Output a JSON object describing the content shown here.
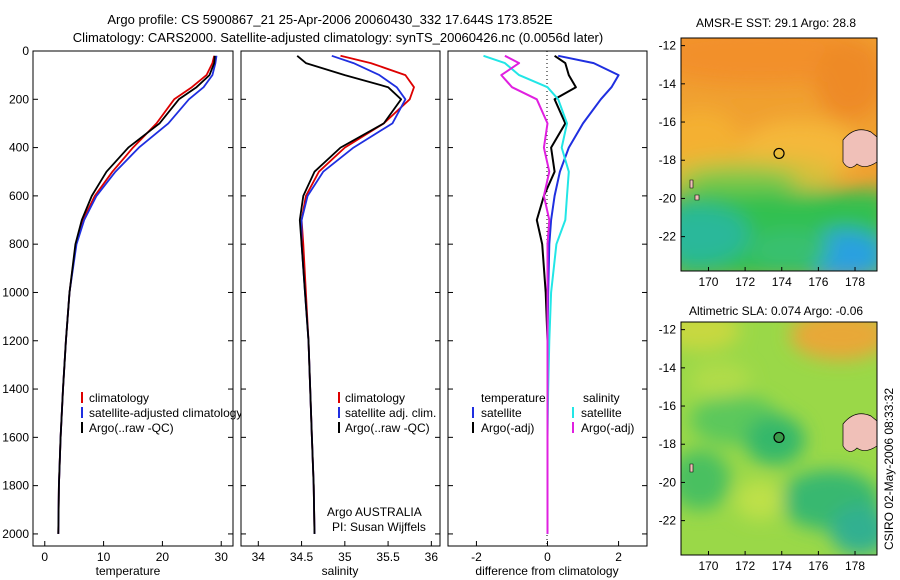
{
  "title": {
    "line1": "Argo profile: CS 5900867_21 25-Apr-2006 20060430_332 17.644S 173.852E",
    "line2": "Climatology: CARS2000. Satellite-adjusted climatology: synTS_20060426.nc (0.0056d later)"
  },
  "footer_credit": "CSIRO 02-May-2006 08:33:32",
  "colors": {
    "climatology": "#dd0000",
    "satellite": "#1f2fe0",
    "argo": "#000000",
    "satellite_salinity": "#22e6e6",
    "argo_salinity": "#e020e0"
  },
  "chart_data": [
    {
      "type": "line",
      "name": "temperature-panel",
      "xlabel": "temperature",
      "ylabel": "",
      "xlim": [
        -2,
        32
      ],
      "ylim": [
        2050,
        0
      ],
      "x_ticks": [
        0,
        10,
        20,
        30
      ],
      "y_ticks": [
        0,
        200,
        400,
        600,
        800,
        1000,
        1200,
        1400,
        1600,
        1800,
        2000
      ],
      "legend": [
        "climatology",
        "satellite-adjusted climatology",
        "Argo(..raw -QC)"
      ],
      "series": [
        {
          "name": "climatology",
          "color_key": "climatology",
          "x": [
            28.8,
            28.5,
            27.5,
            25,
            22,
            19,
            15,
            11.5,
            8.5,
            6.5,
            5.3,
            4.2,
            3.6,
            3.1,
            2.7,
            2.4,
            2.3
          ],
          "y": [
            20,
            50,
            100,
            150,
            200,
            300,
            400,
            500,
            600,
            700,
            800,
            1000,
            1200,
            1400,
            1600,
            1800,
            2000
          ]
        },
        {
          "name": "satellite-adjusted climatology",
          "color_key": "satellite",
          "x": [
            29.2,
            29.0,
            28.5,
            27,
            24.5,
            21,
            16,
            12,
            8.8,
            6.7,
            5.4,
            4.2,
            3.6,
            3.1,
            2.7,
            2.4,
            2.3
          ],
          "y": [
            20,
            50,
            100,
            150,
            200,
            300,
            400,
            500,
            600,
            700,
            800,
            1000,
            1200,
            1400,
            1600,
            1800,
            2000
          ]
        },
        {
          "name": "Argo(..raw -QC)",
          "color_key": "argo",
          "x": [
            28.9,
            28.8,
            28.0,
            25.8,
            22.8,
            19.5,
            14.2,
            10.5,
            8.0,
            6.3,
            5.2,
            4.2,
            3.6,
            3.1,
            2.7,
            2.4,
            2.3
          ],
          "y": [
            20,
            50,
            100,
            150,
            200,
            300,
            400,
            500,
            600,
            700,
            800,
            1000,
            1200,
            1400,
            1600,
            1800,
            2000
          ]
        }
      ]
    },
    {
      "type": "line",
      "name": "salinity-panel",
      "xlabel": "salinity",
      "ylabel": "",
      "xlim": [
        33.8,
        36.1
      ],
      "ylim": [
        2050,
        0
      ],
      "x_ticks": [
        34,
        34.5,
        35,
        35.5,
        36
      ],
      "legend": [
        "climatology",
        "satellite adj. clim.",
        "Argo(..raw -QC)"
      ],
      "annotation": [
        "Argo AUSTRALIA",
        "PI: Susan Wijffels"
      ],
      "series": [
        {
          "name": "climatology",
          "color_key": "climatology",
          "x": [
            34.95,
            35.3,
            35.7,
            35.8,
            35.75,
            35.45,
            35.0,
            34.7,
            34.55,
            34.5,
            34.52,
            34.55,
            34.58,
            34.6,
            34.62,
            34.64,
            34.65
          ],
          "y": [
            20,
            50,
            100,
            150,
            200,
            300,
            400,
            500,
            600,
            700,
            800,
            1000,
            1200,
            1400,
            1600,
            1800,
            2000
          ]
        },
        {
          "name": "satellite adj. clim.",
          "color_key": "satellite",
          "x": [
            34.85,
            35.1,
            35.4,
            35.6,
            35.7,
            35.55,
            35.1,
            34.75,
            34.57,
            34.5,
            34.5,
            34.54,
            34.58,
            34.6,
            34.62,
            34.64,
            34.65
          ],
          "y": [
            20,
            50,
            100,
            150,
            200,
            300,
            400,
            500,
            600,
            700,
            800,
            1000,
            1200,
            1400,
            1600,
            1800,
            2000
          ]
        },
        {
          "name": "Argo(..raw -QC)",
          "color_key": "argo",
          "x": [
            34.45,
            34.55,
            35.0,
            35.5,
            35.65,
            35.45,
            34.95,
            34.65,
            34.52,
            34.48,
            34.5,
            34.54,
            34.58,
            34.6,
            34.62,
            34.64,
            34.65
          ],
          "y": [
            20,
            50,
            100,
            150,
            200,
            300,
            400,
            500,
            600,
            700,
            800,
            1000,
            1200,
            1400,
            1600,
            1800,
            2000
          ]
        }
      ]
    },
    {
      "type": "line",
      "name": "difference-panel",
      "xlabel": "difference from climatology",
      "ylabel": "",
      "xlim": [
        -2.8,
        2.8
      ],
      "ylim": [
        2050,
        0
      ],
      "x_ticks": [
        -2,
        0,
        2
      ],
      "legend_left": [
        "temperature",
        "satellite",
        "Argo(-adj)"
      ],
      "legend_right": [
        "salinity",
        "satellite",
        "Argo(-adj)"
      ],
      "series": [
        {
          "name": "temperature satellite",
          "color_key": "satellite",
          "x": [
            0.3,
            1.3,
            2.0,
            1.8,
            1.5,
            1.0,
            0.6,
            0.35,
            0.2,
            0.1,
            0.05,
            0.02,
            0.0,
            0.0,
            0.0,
            0.0,
            0.0
          ],
          "y": [
            20,
            50,
            100,
            150,
            200,
            300,
            400,
            500,
            600,
            700,
            800,
            1000,
            1200,
            1400,
            1600,
            1800,
            2000
          ]
        },
        {
          "name": "temperature Argo(-adj)",
          "color_key": "argo",
          "x": [
            0.2,
            0.5,
            0.6,
            0.8,
            0.2,
            0.5,
            0.1,
            0.2,
            -0.1,
            -0.3,
            -0.15,
            -0.05,
            0.0,
            0.0,
            0.0,
            0.0,
            0.0
          ],
          "y": [
            20,
            50,
            100,
            150,
            200,
            300,
            400,
            500,
            600,
            700,
            800,
            1000,
            1200,
            1400,
            1600,
            1800,
            2000
          ]
        },
        {
          "name": "salinity satellite",
          "color_key": "satellite_salinity",
          "x": [
            -1.8,
            -1.2,
            -0.8,
            0.0,
            0.3,
            0.55,
            0.4,
            0.6,
            0.55,
            0.5,
            0.25,
            0.1,
            0.05,
            0.02,
            0.0,
            0.0,
            0.0
          ],
          "y": [
            20,
            50,
            100,
            150,
            200,
            300,
            400,
            500,
            600,
            700,
            800,
            1000,
            1200,
            1400,
            1600,
            1800,
            2000
          ]
        },
        {
          "name": "salinity Argo(-adj)",
          "color_key": "argo_salinity",
          "x": [
            -1.2,
            -0.8,
            -1.3,
            -1.0,
            -0.3,
            0.0,
            -0.1,
            0.05,
            -0.1,
            0.05,
            0.0,
            0.0,
            0.0,
            0.0,
            0.0,
            0.0,
            0.0
          ],
          "y": [
            20,
            50,
            100,
            150,
            200,
            300,
            400,
            500,
            600,
            700,
            800,
            1000,
            1200,
            1400,
            1600,
            1800,
            2000
          ]
        }
      ]
    },
    {
      "type": "heatmap",
      "name": "sst-map",
      "title": "AMSR-E SST: 29.1 Argo: 28.8",
      "xlim": [
        168.5,
        179.2
      ],
      "ylim": [
        -23.8,
        -11.6
      ],
      "x_ticks": [
        170,
        172,
        174,
        176,
        178
      ],
      "y_ticks": [
        -12,
        -14,
        -16,
        -18,
        -20,
        -22
      ],
      "float_position": {
        "lon": 173.852,
        "lat": -17.644
      }
    },
    {
      "type": "heatmap",
      "name": "sla-map",
      "title": "Altimetric SLA: 0.074 Argo: -0.06",
      "xlim": [
        168.5,
        179.2
      ],
      "ylim": [
        -23.8,
        -11.6
      ],
      "x_ticks": [
        170,
        172,
        174,
        176,
        178
      ],
      "y_ticks": [
        -12,
        -14,
        -16,
        -18,
        -20,
        -22
      ],
      "float_position": {
        "lon": 173.852,
        "lat": -17.644
      }
    }
  ]
}
